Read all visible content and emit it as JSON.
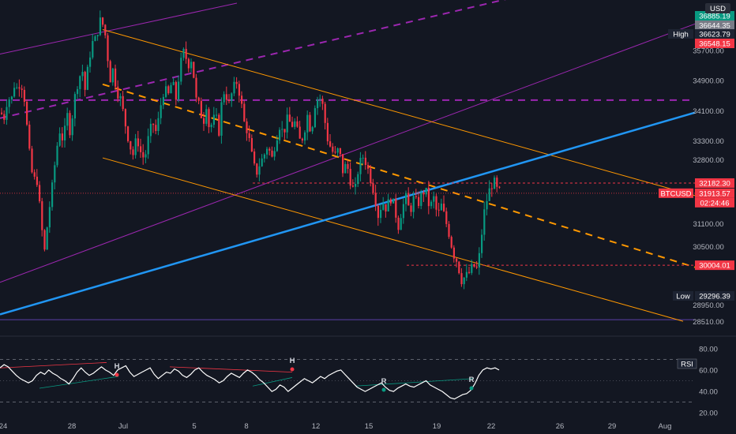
{
  "chart_data": {
    "type": "candlestick",
    "symbol": "BTCUSD",
    "currency_badge": "USD",
    "y_range": [
      28250,
      36950
    ],
    "y_ticks": [
      "35700.00",
      "34900.00",
      "34100.00",
      "33300.00",
      "32800.00",
      "31100.00",
      "30500.00",
      "28950.00",
      "28510.00"
    ],
    "x_ticks": [
      "24",
      "28",
      "Jul",
      "5",
      "8",
      "12",
      "15",
      "19",
      "22",
      "26",
      "29",
      "Aug"
    ],
    "price_tags": [
      {
        "label": "36885.19",
        "value": 36885.19,
        "color": "#089981"
      },
      {
        "label": "36644.35",
        "value": 36644.35,
        "color": "#787b86"
      },
      {
        "label": "36623.79",
        "value": 36623.79,
        "color": "#1e2433",
        "prefix": "High"
      },
      {
        "label": "36548.15",
        "value": 36548.15,
        "color": "#f23645"
      },
      {
        "label": "32182.30",
        "value": 32182.3,
        "color": "#f23645"
      },
      {
        "label": "31913.57",
        "value": 31913.57,
        "color": "#f23645",
        "prefix": "BTCUSD",
        "countdown": "02:24:46"
      },
      {
        "label": "30004.01",
        "value": 30004.01,
        "color": "#f23645"
      },
      {
        "label": "29296.39",
        "value": 29296.39,
        "color": "#1e2433",
        "prefix": "Low"
      }
    ],
    "candle_path": [
      [
        34050,
        0
      ],
      [
        33900,
        4
      ],
      [
        34500,
        9
      ],
      [
        34300,
        13
      ],
      [
        34800,
        16
      ],
      [
        34700,
        20
      ],
      [
        34850,
        25
      ],
      [
        34600,
        29
      ],
      [
        33000,
        36
      ],
      [
        32200,
        41
      ],
      [
        32400,
        45
      ],
      [
        31600,
        49
      ],
      [
        30300,
        55
      ],
      [
        31300,
        60
      ],
      [
        31900,
        64
      ],
      [
        32800,
        69
      ],
      [
        33600,
        74
      ],
      [
        33300,
        79
      ],
      [
        34000,
        84
      ],
      [
        33500,
        88
      ],
      [
        34400,
        93
      ],
      [
        34900,
        98
      ],
      [
        35200,
        103
      ],
      [
        34600,
        107
      ],
      [
        35400,
        111
      ],
      [
        35900,
        116
      ],
      [
        36000,
        120
      ],
      [
        36500,
        126
      ],
      [
        36300,
        131
      ],
      [
        35800,
        134
      ],
      [
        34900,
        138
      ],
      [
        35200,
        142
      ],
      [
        34600,
        147
      ],
      [
        34400,
        152
      ],
      [
        33800,
        157
      ],
      [
        33300,
        162
      ],
      [
        32900,
        167
      ],
      [
        33400,
        172
      ],
      [
        33000,
        177
      ],
      [
        32800,
        182
      ],
      [
        33400,
        187
      ],
      [
        33800,
        192
      ],
      [
        33500,
        197
      ],
      [
        34200,
        202
      ],
      [
        34700,
        207
      ],
      [
        34500,
        212
      ],
      [
        34900,
        217
      ],
      [
        34400,
        222
      ],
      [
        35300,
        227
      ],
      [
        35700,
        232
      ],
      [
        35300,
        237
      ],
      [
        35500,
        242
      ],
      [
        34400,
        247
      ],
      [
        34200,
        252
      ],
      [
        33700,
        256
      ],
      [
        34300,
        260
      ],
      [
        33600,
        264
      ],
      [
        33800,
        268
      ],
      [
        34000,
        272
      ],
      [
        33500,
        276
      ],
      [
        34400,
        280
      ],
      [
        34700,
        284
      ],
      [
        34200,
        288
      ],
      [
        34600,
        293
      ],
      [
        34900,
        298
      ],
      [
        34500,
        303
      ],
      [
        33800,
        308
      ],
      [
        33500,
        313
      ],
      [
        32900,
        318
      ],
      [
        32400,
        323
      ],
      [
        32700,
        328
      ],
      [
        32900,
        333
      ],
      [
        33200,
        338
      ],
      [
        32800,
        343
      ],
      [
        33300,
        348
      ],
      [
        33700,
        353
      ],
      [
        33500,
        358
      ],
      [
        33900,
        363
      ],
      [
        33700,
        368
      ],
      [
        33800,
        373
      ],
      [
        33300,
        378
      ],
      [
        33400,
        383
      ],
      [
        34000,
        388
      ],
      [
        33500,
        393
      ],
      [
        34300,
        398
      ],
      [
        34500,
        403
      ],
      [
        34200,
        408
      ],
      [
        33400,
        413
      ],
      [
        33100,
        418
      ],
      [
        32900,
        423
      ],
      [
        33100,
        428
      ],
      [
        32500,
        433
      ],
      [
        32700,
        438
      ],
      [
        32200,
        443
      ],
      [
        31900,
        448
      ],
      [
        32600,
        453
      ],
      [
        32900,
        458
      ],
      [
        32700,
        463
      ],
      [
        32300,
        468
      ],
      [
        31900,
        473
      ],
      [
        31300,
        478
      ],
      [
        31700,
        483
      ],
      [
        31500,
        488
      ],
      [
        31800,
        493
      ],
      [
        31600,
        498
      ],
      [
        31000,
        503
      ],
      [
        31500,
        508
      ],
      [
        31800,
        513
      ],
      [
        31400,
        518
      ],
      [
        31800,
        523
      ],
      [
        31600,
        528
      ],
      [
        31900,
        533
      ],
      [
        32000,
        538
      ],
      [
        31500,
        543
      ],
      [
        31800,
        548
      ],
      [
        31300,
        553
      ],
      [
        31600,
        558
      ],
      [
        31200,
        563
      ],
      [
        30800,
        568
      ],
      [
        30300,
        573
      ],
      [
        30100,
        578
      ],
      [
        29600,
        583
      ],
      [
        29700,
        588
      ],
      [
        29800,
        593
      ],
      [
        30000,
        598
      ],
      [
        29900,
        603
      ],
      [
        30400,
        607
      ],
      [
        31300,
        611
      ],
      [
        31700,
        615
      ],
      [
        32100,
        620
      ],
      [
        32200,
        625
      ],
      [
        31900,
        630
      ],
      [
        32100,
        634
      ]
    ],
    "indicator": {
      "name": "RSI",
      "y_ticks": [
        "80.00",
        "60.00",
        "40.00",
        "20.00"
      ],
      "pivot_labels": [
        "H",
        "H",
        "R",
        "R"
      ],
      "values": [
        62,
        65,
        63,
        59,
        55,
        52,
        50,
        48,
        50,
        55,
        58,
        56,
        60,
        57,
        55,
        52,
        50,
        47,
        52,
        58,
        62,
        58,
        55,
        57,
        60,
        63,
        60,
        58,
        55,
        60,
        62,
        64,
        58,
        54,
        56,
        58,
        60,
        62,
        56,
        52,
        55,
        58,
        57,
        61,
        59,
        55,
        53,
        56,
        60,
        62,
        58,
        55,
        53,
        51,
        48,
        50,
        54,
        57,
        55,
        53,
        57,
        60,
        58,
        55,
        51,
        48,
        44,
        40,
        42,
        46,
        44,
        40,
        43,
        46,
        49,
        52,
        50,
        48,
        51,
        54,
        52,
        55,
        57,
        59,
        60,
        56,
        52,
        48,
        44,
        42,
        40,
        42,
        44,
        46,
        48,
        44,
        41,
        40,
        43,
        45,
        47,
        45,
        44,
        46,
        48,
        50,
        46,
        44,
        42,
        40,
        37,
        34,
        33,
        35,
        37,
        38,
        41,
        47,
        55,
        60,
        62,
        61,
        62,
        60
      ]
    }
  }
}
